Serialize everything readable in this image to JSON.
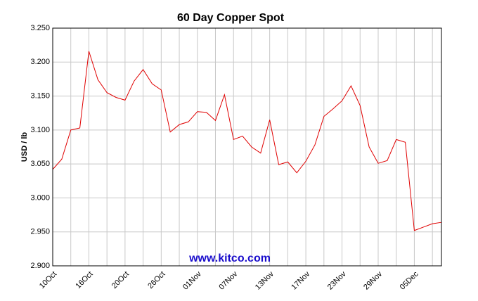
{
  "chart_data": {
    "type": "line",
    "title": "60 Day Copper Spot",
    "y_label": "USD / lb",
    "annotation": "www.kitco.com",
    "categories": [
      "10Oct",
      null,
      null,
      null,
      "16Oct",
      null,
      null,
      null,
      "20Oct",
      null,
      null,
      null,
      "26Oct",
      null,
      null,
      null,
      "01Nov",
      null,
      null,
      null,
      "07Nov",
      null,
      null,
      null,
      "13Nov",
      null,
      null,
      null,
      "17Nov",
      null,
      null,
      null,
      "23Nov",
      null,
      null,
      null,
      "29Nov",
      null,
      null,
      null,
      "05Dec",
      null,
      null,
      null
    ],
    "series": [
      {
        "color": "#e00000",
        "values": [
          3.042,
          3.057,
          3.1,
          3.103,
          3.216,
          3.174,
          3.155,
          3.148,
          3.144,
          3.172,
          3.189,
          3.168,
          3.159,
          3.097,
          3.108,
          3.112,
          3.127,
          3.126,
          3.114,
          3.152,
          3.086,
          3.091,
          3.075,
          3.066,
          3.115,
          3.049,
          3.053,
          3.037,
          3.054,
          3.078,
          3.12,
          3.131,
          3.143,
          3.165,
          3.136,
          3.075,
          3.051,
          3.055,
          3.086,
          3.082,
          2.952,
          2.957,
          2.962,
          2.964
        ]
      }
    ],
    "ylim": [
      2.9,
      3.25
    ],
    "yticks": [
      {
        "value": 2.9,
        "label": "2.900"
      },
      {
        "value": 2.95,
        "label": "2.950"
      },
      {
        "value": 3.0,
        "label": "3.000"
      },
      {
        "value": 3.05,
        "label": "3.050"
      },
      {
        "value": 3.1,
        "label": "3.100"
      },
      {
        "value": 3.15,
        "label": "3.150"
      },
      {
        "value": 3.2,
        "label": "3.200"
      },
      {
        "value": 3.25,
        "label": "3.250"
      }
    ],
    "grid": true
  }
}
